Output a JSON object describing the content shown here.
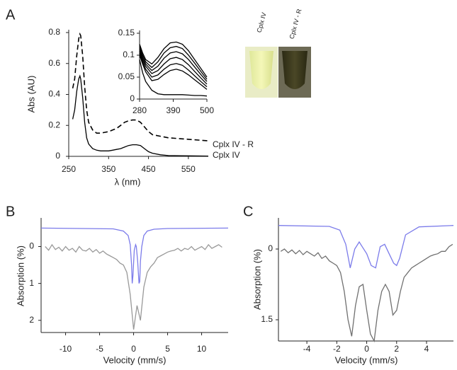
{
  "chart_data": [
    {
      "type": "line",
      "panel": "A",
      "xlabel": "λ (nm)",
      "ylabel": "Abs (AU)",
      "xlim": [
        250,
        600
      ],
      "ylim": [
        0,
        0.8
      ],
      "xticks": [
        250,
        350,
        450,
        550
      ],
      "yticks": [
        0,
        0.2,
        0.4,
        0.6,
        0.8
      ],
      "x": [
        260,
        265,
        270,
        275,
        278,
        280,
        285,
        290,
        295,
        300,
        310,
        320,
        330,
        340,
        350,
        360,
        370,
        380,
        390,
        400,
        410,
        420,
        430,
        440,
        450,
        460,
        480,
        500,
        550,
        600
      ],
      "series": [
        {
          "name": "Cplx IV - R",
          "color": "#000000",
          "style": "dashed",
          "values": [
            0.44,
            0.5,
            0.65,
            0.76,
            0.79,
            0.78,
            0.65,
            0.45,
            0.3,
            0.22,
            0.17,
            0.15,
            0.15,
            0.155,
            0.16,
            0.17,
            0.18,
            0.2,
            0.22,
            0.23,
            0.235,
            0.235,
            0.22,
            0.19,
            0.16,
            0.14,
            0.13,
            0.12,
            0.11,
            0.1
          ]
        },
        {
          "name": "Cplx IV",
          "color": "#000000",
          "style": "solid",
          "values": [
            0.24,
            0.3,
            0.42,
            0.5,
            0.52,
            0.5,
            0.38,
            0.22,
            0.12,
            0.08,
            0.05,
            0.04,
            0.035,
            0.035,
            0.035,
            0.04,
            0.045,
            0.05,
            0.06,
            0.07,
            0.075,
            0.075,
            0.07,
            0.05,
            0.03,
            0.02,
            0.01,
            0.005,
            0.003,
            0.002
          ]
        }
      ]
    },
    {
      "type": "line",
      "xlim": [
        280,
        500
      ],
      "ylim": [
        0,
        0.15
      ],
      "xticks": [
        280,
        390,
        500
      ],
      "yticks": [
        0,
        0.05,
        0.1,
        0.15
      ],
      "x": [
        280,
        290,
        300,
        320,
        340,
        360,
        380,
        400,
        420,
        440,
        460,
        480,
        500
      ],
      "series": [
        {
          "color": "#000000",
          "values": [
            0.125,
            0.105,
            0.09,
            0.08,
            0.095,
            0.115,
            0.128,
            0.13,
            0.125,
            0.11,
            0.09,
            0.07,
            0.05
          ]
        },
        {
          "color": "#000000",
          "values": [
            0.12,
            0.1,
            0.085,
            0.072,
            0.085,
            0.105,
            0.117,
            0.12,
            0.115,
            0.1,
            0.082,
            0.063,
            0.045
          ]
        },
        {
          "color": "#000000",
          "values": [
            0.115,
            0.095,
            0.08,
            0.065,
            0.075,
            0.093,
            0.105,
            0.108,
            0.103,
            0.09,
            0.073,
            0.056,
            0.04
          ]
        },
        {
          "color": "#000000",
          "values": [
            0.11,
            0.09,
            0.075,
            0.058,
            0.065,
            0.08,
            0.092,
            0.095,
            0.09,
            0.078,
            0.063,
            0.048,
            0.034
          ]
        },
        {
          "color": "#000000",
          "values": [
            0.105,
            0.085,
            0.068,
            0.05,
            0.055,
            0.068,
            0.078,
            0.081,
            0.077,
            0.066,
            0.053,
            0.04,
            0.028
          ]
        },
        {
          "color": "#000000",
          "values": [
            0.1,
            0.08,
            0.062,
            0.042,
            0.045,
            0.056,
            0.065,
            0.068,
            0.064,
            0.055,
            0.044,
            0.033,
            0.022
          ]
        },
        {
          "color": "#000000",
          "values": [
            0.09,
            0.06,
            0.04,
            0.02,
            0.012,
            0.01,
            0.01,
            0.01,
            0.01,
            0.009,
            0.008,
            0.008,
            0.007
          ]
        }
      ]
    },
    {
      "type": "line",
      "panel": "B",
      "xlabel": "Velocity (mm/s)",
      "ylabel": "Absorption (%)",
      "y_inverted": true,
      "xlim": [
        -13.6,
        13.9
      ],
      "ylim": [
        -0.7,
        2.33
      ],
      "xticks": [
        -10,
        -5,
        0,
        5,
        10
      ],
      "yticks": [
        0,
        1,
        2
      ],
      "series": [
        {
          "color": "#999999",
          "style": "solid",
          "x": [
            -13,
            -12.5,
            -12,
            -11.5,
            -11,
            -10.5,
            -10,
            -9.5,
            -9,
            -8.5,
            -8,
            -7.5,
            -7,
            -6.5,
            -6,
            -5.5,
            -5,
            -4.5,
            -4,
            -3.5,
            -3,
            -2.5,
            -2,
            -1.5,
            -1,
            -0.5,
            0,
            0.5,
            1,
            1.5,
            2,
            2.5,
            3,
            3.5,
            4,
            4.5,
            5,
            5.5,
            6,
            6.5,
            7,
            7.5,
            8,
            8.5,
            9,
            9.5,
            10,
            10.5,
            11,
            11.5,
            12,
            12.5,
            13
          ],
          "values": [
            0.0,
            0.1,
            -0.05,
            0.08,
            0.02,
            0.12,
            0.0,
            0.1,
            0.05,
            0.15,
            0.0,
            0.1,
            0.12,
            0.05,
            0.15,
            0.08,
            0.18,
            0.12,
            0.2,
            0.25,
            0.3,
            0.35,
            0.45,
            0.5,
            0.7,
            1.3,
            2.25,
            1.6,
            2.0,
            1.1,
            0.7,
            0.55,
            0.45,
            0.3,
            0.25,
            0.2,
            0.15,
            0.12,
            0.1,
            0.05,
            0.12,
            0.05,
            0.08,
            0.0,
            0.1,
            0.05,
            0.0,
            0.08,
            -0.05,
            0.05,
            0.0,
            -0.05,
            0.02
          ]
        },
        {
          "color": "#7b7bea",
          "style": "solid",
          "x": [
            -13.6,
            -3,
            -1.5,
            -0.8,
            -0.5,
            -0.3,
            -0.2,
            -0.1,
            0.1,
            0.3,
            0.4,
            0.6,
            0.8,
            0.9,
            1.0,
            1.2,
            1.5,
            2,
            3,
            5,
            13.9
          ],
          "values": [
            -0.5,
            -0.48,
            -0.42,
            -0.3,
            -0.05,
            0.5,
            1.0,
            0.8,
            0.1,
            -0.05,
            0.0,
            0.4,
            1.0,
            0.95,
            0.4,
            0.0,
            -0.3,
            -0.42,
            -0.47,
            -0.49,
            -0.5
          ]
        }
      ]
    },
    {
      "type": "line",
      "panel": "C",
      "xlabel": "Velocity (mm/s)",
      "ylabel": "Absorption (%)",
      "y_inverted": true,
      "xlim": [
        -5.9,
        5.8
      ],
      "ylim": [
        -0.6,
        1.95
      ],
      "xticks": [
        -4,
        -2,
        0,
        2,
        4
      ],
      "yticks": [
        0,
        1.5
      ],
      "series": [
        {
          "color": "#707070",
          "style": "solid",
          "x": [
            -5.75,
            -5.5,
            -5.25,
            -5,
            -4.75,
            -4.5,
            -4.25,
            -4,
            -3.75,
            -3.5,
            -3.25,
            -3,
            -2.75,
            -2.5,
            -2.25,
            -2,
            -1.75,
            -1.5,
            -1.25,
            -1,
            -0.75,
            -0.5,
            -0.25,
            0,
            0.25,
            0.5,
            0.75,
            1,
            1.25,
            1.5,
            1.75,
            2,
            2.25,
            2.5,
            2.75,
            3,
            3.25,
            3.5,
            3.75,
            4,
            4.25,
            4.5,
            4.75,
            5,
            5.25,
            5.5,
            5.75
          ],
          "values": [
            0.05,
            0.0,
            0.08,
            0.02,
            0.1,
            0.03,
            0.12,
            0.05,
            0.1,
            0.15,
            0.08,
            0.2,
            0.15,
            0.25,
            0.3,
            0.35,
            0.5,
            0.9,
            1.5,
            1.85,
            1.2,
            0.8,
            0.75,
            1.3,
            1.8,
            1.95,
            1.3,
            0.9,
            0.75,
            0.9,
            1.4,
            1.3,
            0.9,
            0.6,
            0.5,
            0.4,
            0.35,
            0.3,
            0.25,
            0.2,
            0.15,
            0.12,
            0.1,
            0.05,
            0.05,
            -0.05,
            -0.1
          ]
        },
        {
          "color": "#7b7bea",
          "style": "solid",
          "x": [
            -5.9,
            -2.5,
            -1.8,
            -1.4,
            -1.1,
            -0.8,
            -0.5,
            -0.3,
            0,
            0.3,
            0.6,
            0.9,
            1.2,
            1.5,
            1.8,
            2.0,
            2.2,
            2.6,
            3.5,
            5.8
          ],
          "values": [
            -0.5,
            -0.48,
            -0.4,
            -0.1,
            0.4,
            0.0,
            -0.15,
            -0.05,
            0.1,
            0.35,
            0.4,
            -0.05,
            -0.1,
            0.1,
            0.3,
            0.35,
            0.2,
            -0.3,
            -0.47,
            -0.5
          ]
        }
      ]
    }
  ],
  "image": {
    "labels": [
      "Cplx IV",
      "Cplx IV - R"
    ]
  }
}
